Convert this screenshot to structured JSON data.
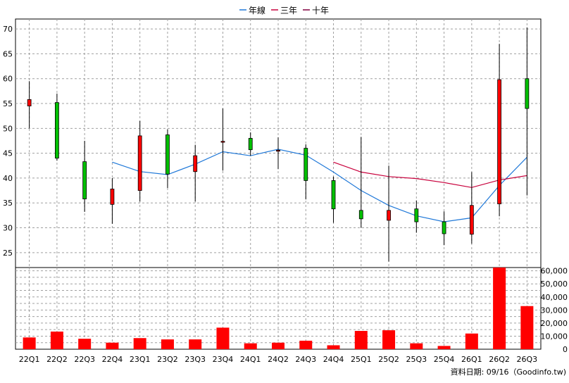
{
  "chart_data": {
    "type": "candlestick",
    "legend": [
      {
        "name": "年線",
        "color": "#1f78d8"
      },
      {
        "name": "三年",
        "color": "#c8003c"
      },
      {
        "name": "十年",
        "color": "#800040"
      }
    ],
    "legend_position": "top-center",
    "grid": true,
    "categories": [
      "22Q1",
      "22Q2",
      "22Q3",
      "22Q4",
      "23Q1",
      "23Q2",
      "23Q3",
      "23Q4",
      "24Q1",
      "24Q2",
      "24Q3",
      "24Q4",
      "25Q1",
      "25Q2",
      "25Q3",
      "25Q4",
      "26Q1",
      "26Q2",
      "26Q3"
    ],
    "price_axis": {
      "ylim": [
        22,
        72
      ],
      "ticks": [
        25,
        30,
        35,
        40,
        45,
        50,
        55,
        60,
        65,
        70
      ]
    },
    "volume_axis": {
      "ylim": [
        0,
        62500
      ],
      "ticks": [
        0,
        10000,
        20000,
        30000,
        40000,
        50000,
        60000
      ],
      "tick_labels": [
        "0",
        "10,000",
        "20,000",
        "30,000",
        "40,000",
        "50,000",
        "60,000"
      ]
    },
    "candles": [
      {
        "open": 54.5,
        "close": 55.8,
        "high": 59.5,
        "low": 50.0
      },
      {
        "open": 55.2,
        "close": 44.0,
        "high": 57.0,
        "low": 43.5
      },
      {
        "open": 43.3,
        "close": 35.8,
        "high": 47.5,
        "low": 33.2
      },
      {
        "open": 34.7,
        "close": 37.8,
        "high": 40.0,
        "low": 30.8
      },
      {
        "open": 37.5,
        "close": 48.5,
        "high": 51.5,
        "low": 35.3
      },
      {
        "open": 48.7,
        "close": 40.8,
        "high": 49.8,
        "low": 38.0
      },
      {
        "open": 41.3,
        "close": 44.5,
        "high": 46.7,
        "low": 35.3
      },
      {
        "open": 47.2,
        "close": 47.4,
        "high": 54.0,
        "low": 41.5
      },
      {
        "open": 48.0,
        "close": 45.7,
        "high": 49.2,
        "low": 44.5
      },
      {
        "open": 45.4,
        "close": 45.6,
        "high": 48.2,
        "low": 41.8
      },
      {
        "open": 46.0,
        "close": 39.5,
        "high": 46.8,
        "low": 35.7
      },
      {
        "open": 39.5,
        "close": 33.8,
        "high": 40.3,
        "low": 31.0
      },
      {
        "open": 33.5,
        "close": 31.8,
        "high": 48.3,
        "low": 30.0
      },
      {
        "open": 31.5,
        "close": 33.5,
        "high": 42.5,
        "low": 23.2
      },
      {
        "open": 33.8,
        "close": 31.2,
        "high": 35.5,
        "low": 29.0
      },
      {
        "open": 31.2,
        "close": 28.8,
        "high": 33.3,
        "low": 26.5
      },
      {
        "open": 28.7,
        "close": 34.5,
        "high": 41.2,
        "low": 26.8
      },
      {
        "open": 34.8,
        "close": 59.8,
        "high": 67.0,
        "low": 32.3
      },
      {
        "open": 60.0,
        "close": 54.0,
        "high": 70.3,
        "low": 36.5
      }
    ],
    "up_color": "#ff0000",
    "down_color": "#00c000",
    "volume": [
      9000,
      13500,
      8000,
      5000,
      8500,
      7500,
      7500,
      16500,
      4500,
      5000,
      6500,
      3000,
      14000,
      14500,
      4500,
      2500,
      12000,
      62500,
      33000
    ],
    "volume_color": "#ff0000",
    "series": [
      {
        "name": "年線",
        "color": "#1f78d8",
        "values": [
          null,
          null,
          null,
          43.2,
          41.3,
          40.7,
          42.8,
          45.3,
          44.5,
          45.8,
          44.6,
          41.2,
          37.5,
          34.5,
          32.4,
          31.2,
          32.0,
          38.5,
          44.2
        ]
      },
      {
        "name": "三年",
        "color": "#c8003c",
        "values": [
          null,
          null,
          null,
          null,
          null,
          null,
          null,
          null,
          null,
          null,
          null,
          43.2,
          41.2,
          40.3,
          39.9,
          39.1,
          38.1,
          39.6,
          40.5
        ]
      }
    ],
    "footer": "資料日期: 09/16（Goodinfo.tw)"
  }
}
